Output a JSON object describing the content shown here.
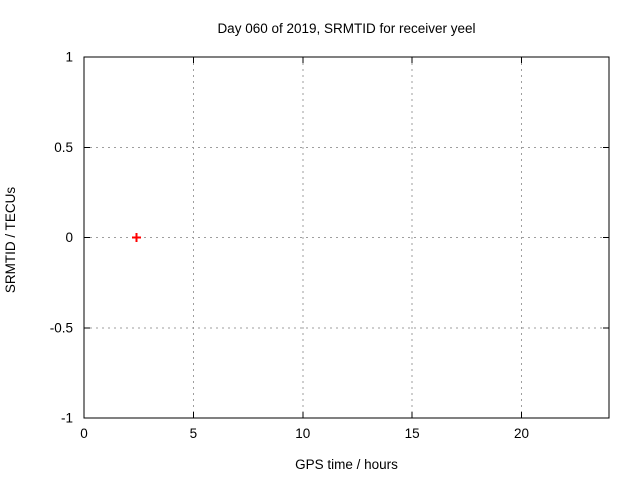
{
  "chart_data": {
    "type": "scatter",
    "title": "Day 060 of 2019, SRMTID for receiver yeel",
    "xlabel": "GPS time / hours",
    "ylabel": "SRMTID / TECUs",
    "xlim": [
      0,
      24
    ],
    "ylim": [
      -1,
      1
    ],
    "xticks": [
      0,
      5,
      10,
      15,
      20
    ],
    "yticks": [
      -1,
      -0.5,
      0,
      0.5,
      1
    ],
    "grid": true,
    "legend_position": "none",
    "series": [
      {
        "name": "SRMTID",
        "marker": "plus",
        "marker_size": 4.5,
        "color": "#ff0000",
        "points": [
          {
            "x": 2.4,
            "y": 0.0
          }
        ]
      }
    ]
  },
  "colors": {
    "background": "#ffffff",
    "axis": "#000000",
    "grid": "#9e9e9e",
    "text": "#000000",
    "point": "#ff0000"
  }
}
